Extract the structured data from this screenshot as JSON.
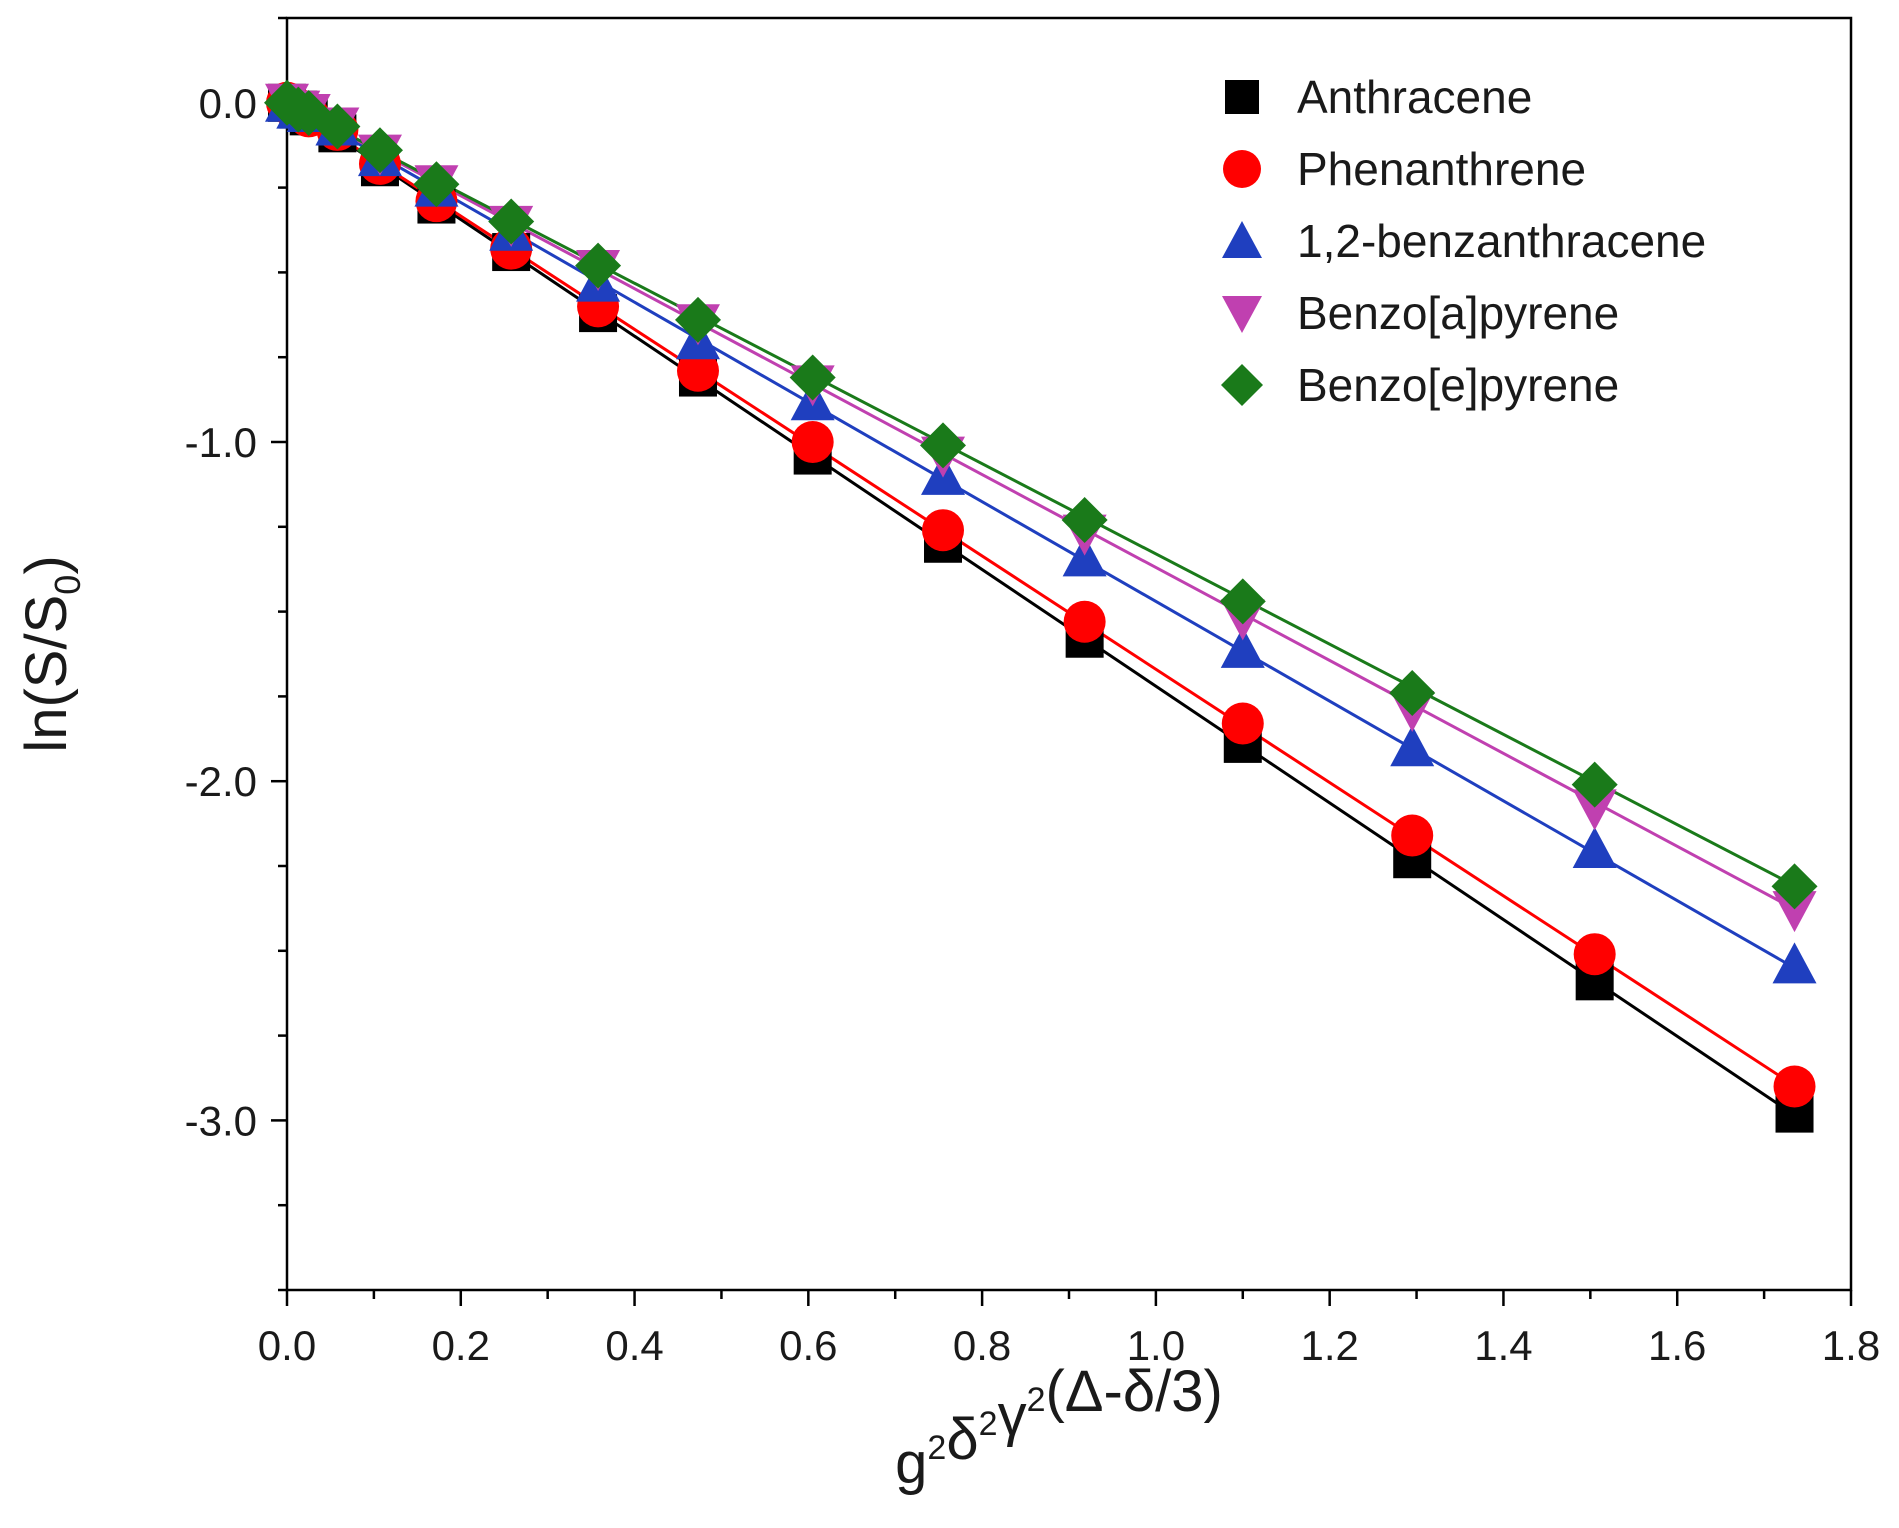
{
  "chart_data": {
    "type": "scatter",
    "xlabel": {
      "base": "g",
      "parts": [
        [
          "g",
          "2"
        ],
        [
          "δ",
          "2"
        ],
        [
          "γ",
          "2"
        ]
      ],
      "suffix": "(Δ-δ/3)"
    },
    "ylabel": {
      "prefix": "ln(S/S",
      "sub": "0",
      "suffix": ")"
    },
    "xlim": [
      0.0,
      1.8
    ],
    "ylim": [
      -3.5,
      0.25
    ],
    "xticks": [
      "0.0",
      "0.2",
      "0.4",
      "0.6",
      "0.8",
      "1.0",
      "1.2",
      "1.4",
      "1.6",
      "1.8"
    ],
    "yticks": [
      "0.0",
      "-1.0",
      "-2.0",
      "-3.0"
    ],
    "legend_position": "top-right",
    "x": [
      0.0,
      0.013,
      0.025,
      0.058,
      0.107,
      0.172,
      0.258,
      0.358,
      0.473,
      0.605,
      0.755,
      0.918,
      1.1,
      1.295,
      1.505,
      1.735
    ],
    "series": [
      {
        "name": "Anthracene",
        "marker": "square",
        "color": "#000000",
        "slope": -1.72,
        "values": [
          0.0,
          -0.02,
          -0.04,
          -0.09,
          -0.19,
          -0.3,
          -0.44,
          -0.62,
          -0.81,
          -1.04,
          -1.3,
          -1.58,
          -1.89,
          -2.23,
          -2.59,
          -2.98
        ]
      },
      {
        "name": "Phenanthrene",
        "marker": "circle",
        "color": "#ff0000",
        "slope": -1.67,
        "values": [
          0.0,
          -0.02,
          -0.04,
          -0.08,
          -0.18,
          -0.29,
          -0.43,
          -0.6,
          -0.79,
          -1.0,
          -1.26,
          -1.53,
          -1.83,
          -2.16,
          -2.51,
          -2.9
        ]
      },
      {
        "name": "1,2-benzanthracene",
        "marker": "triangle-up",
        "color": "#1f3fbf",
        "slope": -1.47,
        "values": [
          0.0,
          -0.02,
          -0.03,
          -0.07,
          -0.16,
          -0.25,
          -0.38,
          -0.53,
          -0.7,
          -0.88,
          -1.1,
          -1.34,
          -1.61,
          -1.9,
          -2.2,
          -2.54
        ]
      },
      {
        "name": "Benzo[a]pyrene",
        "marker": "triangle-down",
        "color": "#c040b0",
        "slope": -1.37,
        "values": [
          0.0,
          -0.02,
          -0.03,
          -0.07,
          -0.15,
          -0.24,
          -0.36,
          -0.49,
          -0.65,
          -0.83,
          -1.04,
          -1.27,
          -1.52,
          -1.79,
          -2.08,
          -2.38
        ]
      },
      {
        "name": "Benzo[e]pyrene",
        "marker": "diamond",
        "color": "#1a7a1a",
        "slope": -1.33,
        "values": [
          0.0,
          -0.02,
          -0.03,
          -0.07,
          -0.14,
          -0.24,
          -0.35,
          -0.48,
          -0.64,
          -0.81,
          -1.01,
          -1.23,
          -1.47,
          -1.74,
          -2.01,
          -2.31
        ]
      }
    ]
  }
}
